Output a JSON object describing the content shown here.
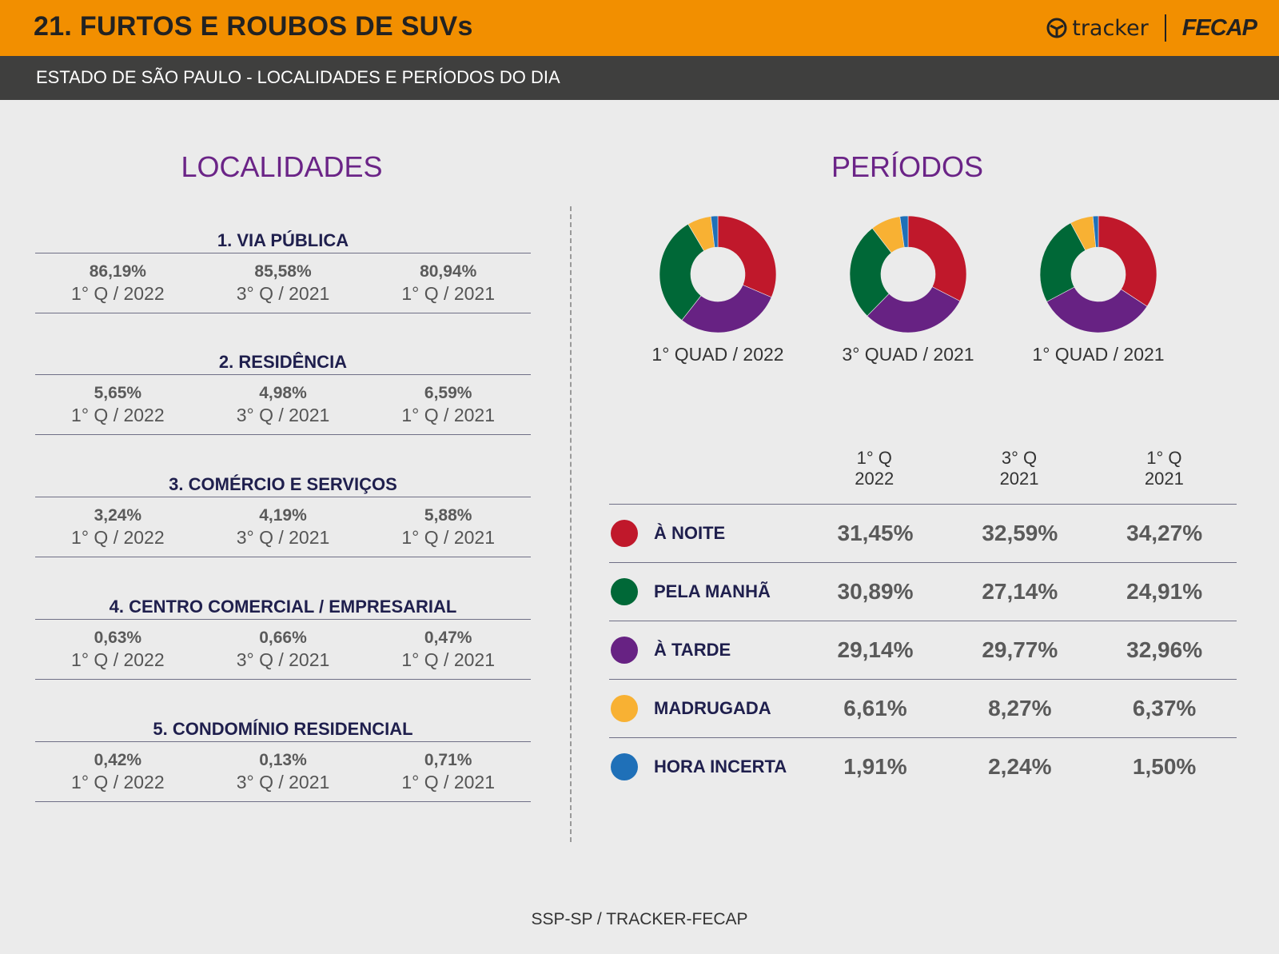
{
  "header": {
    "title": "21. FURTOS E ROUBOS DE SUVs",
    "subtitle": "ESTADO DE SÃO PAULO - LOCALIDADES E PERÍODOS DO DIA",
    "tracker_logo": "tracker",
    "fecap_logo": "FECAP"
  },
  "colors": {
    "header_bg": "#f28f00",
    "subheader_bg": "#3f3f3e",
    "section_title": "#6b2487",
    "noite": "#c0182b",
    "manha": "#006837",
    "tarde": "#672283",
    "madrugada": "#f8b133",
    "incerta": "#1f70b8"
  },
  "localidades": {
    "title": "LOCALIDADES",
    "items": [
      {
        "title": "1. VIA PÚBLICA",
        "values": [
          {
            "value": "86,19%",
            "period": "1° Q / 2022"
          },
          {
            "value": "85,58%",
            "period": "3° Q / 2021"
          },
          {
            "value": "80,94%",
            "period": "1° Q / 2021"
          }
        ]
      },
      {
        "title": "2. RESIDÊNCIA",
        "values": [
          {
            "value": "5,65%",
            "period": "1° Q / 2022"
          },
          {
            "value": "4,98%",
            "period": "3° Q / 2021"
          },
          {
            "value": "6,59%",
            "period": "1° Q / 2021"
          }
        ]
      },
      {
        "title": "3. COMÉRCIO E SERVIÇOS",
        "values": [
          {
            "value": "3,24%",
            "period": "1° Q / 2022"
          },
          {
            "value": "4,19%",
            "period": "3° Q / 2021"
          },
          {
            "value": "5,88%",
            "period": "1° Q / 2021"
          }
        ]
      },
      {
        "title": "4. CENTRO COMERCIAL / EMPRESARIAL",
        "values": [
          {
            "value": "0,63%",
            "period": "1° Q / 2022"
          },
          {
            "value": "0,66%",
            "period": "3° Q / 2021"
          },
          {
            "value": "0,47%",
            "period": "1° Q / 2021"
          }
        ]
      },
      {
        "title": "5. CONDOMÍNIO RESIDENCIAL",
        "values": [
          {
            "value": "0,42%",
            "period": "1° Q / 2022"
          },
          {
            "value": "0,13%",
            "period": "3° Q / 2021"
          },
          {
            "value": "0,71%",
            "period": "1° Q / 2021"
          }
        ]
      }
    ]
  },
  "periodos": {
    "title": "PERÍODOS",
    "donut_labels": [
      "1° QUAD / 2022",
      "3° QUAD / 2021",
      "1° QUAD / 2021"
    ],
    "table_headers": [
      {
        "line1": "1° Q",
        "line2": "2022"
      },
      {
        "line1": "3° Q",
        "line2": "2021"
      },
      {
        "line1": "1° Q",
        "line2": "2021"
      }
    ],
    "rows": [
      {
        "label": "À NOITE",
        "color": "#c0182b",
        "values": [
          "31,45%",
          "32,59%",
          "34,27%"
        ]
      },
      {
        "label": "PELA MANHÃ",
        "color": "#006837",
        "values": [
          "30,89%",
          "27,14%",
          "24,91%"
        ]
      },
      {
        "label": "À TARDE",
        "color": "#672283",
        "values": [
          "29,14%",
          "29,77%",
          "32,96%"
        ]
      },
      {
        "label": "MADRUGADA",
        "color": "#f8b133",
        "values": [
          "6,61%",
          "8,27%",
          "6,37%"
        ]
      },
      {
        "label": "HORA INCERTA",
        "color": "#1f70b8",
        "values": [
          "1,91%",
          "2,24%",
          "1,50%"
        ]
      }
    ]
  },
  "chart_data": [
    {
      "type": "pie",
      "title": "1° QUAD / 2022",
      "categories": [
        "À NOITE",
        "À TARDE",
        "PELA MANHÃ",
        "MADRUGADA",
        "HORA INCERTA"
      ],
      "values": [
        31.45,
        29.14,
        30.89,
        6.61,
        1.91
      ],
      "colors": [
        "#c0182b",
        "#672283",
        "#006837",
        "#f8b133",
        "#1f70b8"
      ]
    },
    {
      "type": "pie",
      "title": "3° QUAD / 2021",
      "categories": [
        "À NOITE",
        "À TARDE",
        "PELA MANHÃ",
        "MADRUGADA",
        "HORA INCERTA"
      ],
      "values": [
        32.59,
        29.77,
        27.14,
        8.27,
        2.24
      ],
      "colors": [
        "#c0182b",
        "#672283",
        "#006837",
        "#f8b133",
        "#1f70b8"
      ]
    },
    {
      "type": "pie",
      "title": "1° QUAD / 2021",
      "categories": [
        "À NOITE",
        "À TARDE",
        "PELA MANHÃ",
        "MADRUGADA",
        "HORA INCERTA"
      ],
      "values": [
        34.27,
        32.96,
        24.91,
        6.37,
        1.5
      ],
      "colors": [
        "#c0182b",
        "#672283",
        "#006837",
        "#f8b133",
        "#1f70b8"
      ]
    }
  ],
  "footer": {
    "source": "SSP-SP / TRACKER-FECAP"
  }
}
